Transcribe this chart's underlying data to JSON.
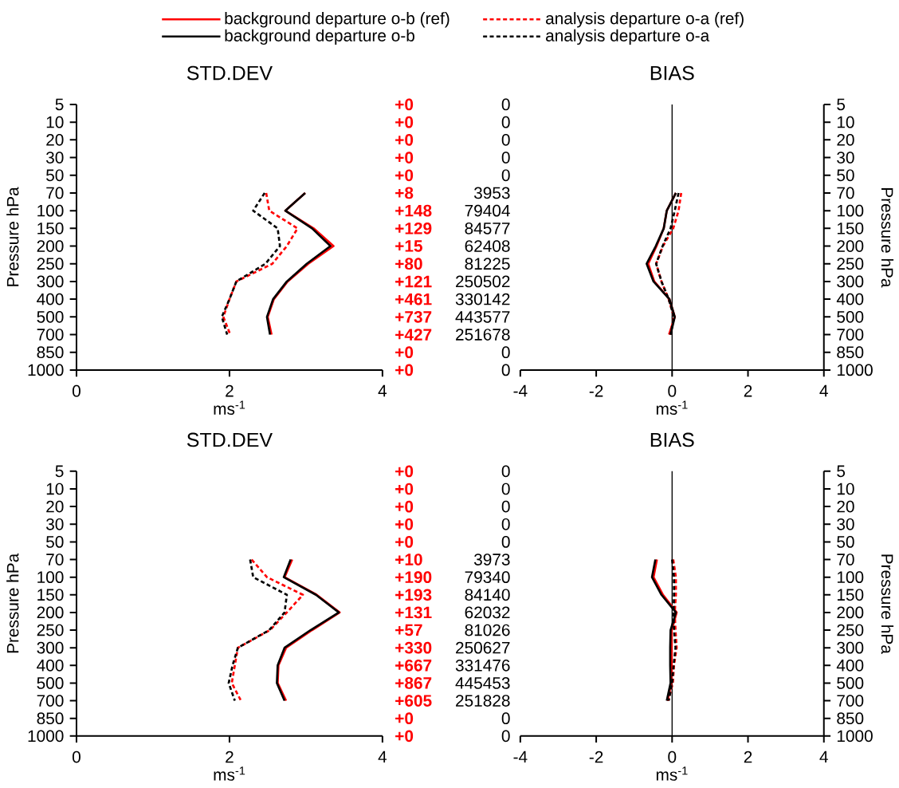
{
  "chart_data": [
    {
      "type": "line",
      "orientation": "horizontal",
      "title": "STD.DEV",
      "xlabel": "ms$^{-1}$",
      "ylabel": "Pressure hPa",
      "legend": "top",
      "categories": [
        "5",
        "10",
        "20",
        "30",
        "50",
        "70",
        "100",
        "150",
        "200",
        "250",
        "300",
        "400",
        "500",
        "700",
        "850",
        "1000"
      ],
      "xlim": [
        0,
        4
      ],
      "xticks": [
        0,
        2,
        4
      ],
      "series": [
        {
          "name": "background departure o-b (ref)",
          "color": "#ff0000",
          "line_style": "solid",
          "values": [
            null,
            null,
            null,
            null,
            null,
            2.99,
            2.73,
            3.1,
            3.36,
            3.03,
            2.76,
            2.58,
            2.5,
            2.55,
            null,
            null
          ]
        },
        {
          "name": "analysis departure o-a (ref)",
          "color": "#ff0000",
          "line_style": "dashed",
          "values": [
            null,
            null,
            null,
            null,
            null,
            2.48,
            2.52,
            2.89,
            2.75,
            2.56,
            2.09,
            2.0,
            1.92,
            2.01,
            null,
            null
          ]
        },
        {
          "name": "background departure o-b",
          "color": "#000000",
          "line_style": "solid",
          "values": [
            null,
            null,
            null,
            null,
            null,
            2.99,
            2.73,
            3.08,
            3.32,
            3.01,
            2.75,
            2.57,
            2.49,
            2.53,
            null,
            null
          ]
        },
        {
          "name": "analysis departure o-a",
          "color": "#000000",
          "line_style": "dashed",
          "values": [
            null,
            null,
            null,
            null,
            null,
            2.46,
            2.31,
            2.63,
            2.66,
            2.47,
            2.09,
            2.0,
            1.9,
            1.97,
            null,
            null
          ]
        }
      ],
      "annotations": [
        "+0",
        "0",
        "+0",
        "0",
        "+0",
        "0",
        "+0",
        "0",
        "+0",
        "0",
        "+8",
        "3953",
        "+148",
        "79404",
        "+129",
        "84577",
        "+15",
        "62408",
        "+80",
        "81225",
        "+121",
        "250502",
        "+461",
        "330142",
        "+737",
        "443577",
        "+427",
        "251678",
        "+0",
        "0",
        "+0",
        "0"
      ]
    },
    {
      "type": "line",
      "orientation": "horizontal",
      "title": "BIAS",
      "xlabel": "ms$^{-1}$",
      "ylabel": "Pressure hPa",
      "categories": [
        "5",
        "10",
        "20",
        "30",
        "50",
        "70",
        "100",
        "150",
        "200",
        "250",
        "300",
        "400",
        "500",
        "700",
        "850",
        "1000"
      ],
      "xlim": [
        -4,
        4
      ],
      "xticks": [
        -4,
        -2,
        0,
        2,
        4
      ],
      "ref_lines": [
        {
          "axis": "x",
          "value": 0,
          "color": "#000000"
        }
      ],
      "series": [
        {
          "color": "#ff0000",
          "line_style": "solid",
          "values": [
            null,
            null,
            null,
            null,
            null,
            0.1,
            -0.14,
            -0.22,
            -0.41,
            -0.63,
            -0.47,
            -0.07,
            0.07,
            -0.08,
            null,
            null
          ]
        },
        {
          "color": "#ff0000",
          "line_style": "dashed",
          "values": [
            null,
            null,
            null,
            null,
            null,
            0.24,
            0.17,
            0.03,
            -0.24,
            -0.42,
            -0.28,
            -0.09,
            0.05,
            -0.05,
            null,
            null
          ]
        },
        {
          "color": "#000000",
          "line_style": "solid",
          "values": [
            null,
            null,
            null,
            null,
            null,
            0.1,
            -0.14,
            -0.22,
            -0.43,
            -0.67,
            -0.49,
            -0.07,
            0.07,
            -0.04,
            null,
            null
          ]
        },
        {
          "color": "#000000",
          "line_style": "dashed",
          "values": [
            null,
            null,
            null,
            null,
            null,
            0.17,
            0.07,
            -0.04,
            -0.25,
            -0.42,
            -0.28,
            -0.09,
            0.05,
            -0.04,
            null,
            null
          ]
        }
      ]
    },
    {
      "type": "line",
      "orientation": "horizontal",
      "title": "STD.DEV",
      "xlabel": "ms$^{-1}$",
      "ylabel": "Pressure hPa",
      "categories": [
        "5",
        "10",
        "20",
        "30",
        "50",
        "70",
        "100",
        "150",
        "200",
        "250",
        "300",
        "400",
        "500",
        "700",
        "850",
        "1000"
      ],
      "xlim": [
        0,
        4
      ],
      "xticks": [
        0,
        2,
        4
      ],
      "series": [
        {
          "color": "#ff0000",
          "line_style": "solid",
          "values": [
            null,
            null,
            null,
            null,
            null,
            2.82,
            2.72,
            3.14,
            3.44,
            3.08,
            2.74,
            2.64,
            2.63,
            2.74,
            null,
            null
          ]
        },
        {
          "color": "#ff0000",
          "line_style": "dashed",
          "values": [
            null,
            null,
            null,
            null,
            null,
            2.29,
            2.49,
            2.96,
            2.75,
            2.53,
            2.11,
            2.07,
            2.03,
            2.15,
            null,
            null
          ]
        },
        {
          "color": "#000000",
          "line_style": "solid",
          "values": [
            null,
            null,
            null,
            null,
            null,
            2.8,
            2.71,
            3.13,
            3.43,
            3.06,
            2.72,
            2.63,
            2.62,
            2.72,
            null,
            null
          ]
        },
        {
          "color": "#000000",
          "line_style": "dashed",
          "values": [
            null,
            null,
            null,
            null,
            null,
            2.27,
            2.31,
            2.75,
            2.72,
            2.52,
            2.11,
            2.04,
            1.99,
            2.07,
            null,
            null
          ]
        }
      ],
      "annotations": [
        "+0",
        "0",
        "+0",
        "0",
        "+0",
        "0",
        "+0",
        "0",
        "+0",
        "0",
        "+10",
        "3973",
        "+190",
        "79340",
        "+193",
        "84140",
        "+131",
        "62032",
        "+57",
        "81026",
        "+330",
        "250627",
        "+667",
        "331476",
        "+867",
        "445453",
        "+605",
        "251828",
        "+0",
        "0",
        "+0",
        "0"
      ]
    },
    {
      "type": "line",
      "orientation": "horizontal",
      "title": "BIAS",
      "xlabel": "ms$^{-1}$",
      "ylabel": "Pressure hPa",
      "categories": [
        "5",
        "10",
        "20",
        "30",
        "50",
        "70",
        "100",
        "150",
        "200",
        "250",
        "300",
        "400",
        "500",
        "700",
        "850",
        "1000"
      ],
      "xlim": [
        -4,
        4
      ],
      "xticks": [
        -4,
        -2,
        0,
        2,
        4
      ],
      "ref_lines": [
        {
          "axis": "x",
          "value": 0,
          "color": "#000000"
        }
      ],
      "series": [
        {
          "color": "#ff0000",
          "line_style": "solid",
          "values": [
            null,
            null,
            null,
            null,
            null,
            -0.4,
            -0.49,
            -0.24,
            0.12,
            -0.01,
            -0.01,
            -0.01,
            -0.02,
            -0.12,
            null,
            null
          ]
        },
        {
          "color": "#ff0000",
          "line_style": "dashed",
          "values": [
            null,
            null,
            null,
            null,
            null,
            0.03,
            0.1,
            0.1,
            0.07,
            0.09,
            0.12,
            0.05,
            0.02,
            -0.1,
            null,
            null
          ]
        },
        {
          "color": "#000000",
          "line_style": "solid",
          "values": [
            null,
            null,
            null,
            null,
            null,
            -0.44,
            -0.53,
            -0.28,
            0.1,
            -0.04,
            -0.05,
            -0.05,
            -0.04,
            -0.14,
            null,
            null
          ]
        },
        {
          "color": "#000000",
          "line_style": "dashed",
          "values": [
            null,
            null,
            null,
            null,
            null,
            0.0,
            0.05,
            0.05,
            0.04,
            0.05,
            0.09,
            0.04,
            0.0,
            -0.09,
            null,
            null
          ]
        }
      ]
    }
  ]
}
